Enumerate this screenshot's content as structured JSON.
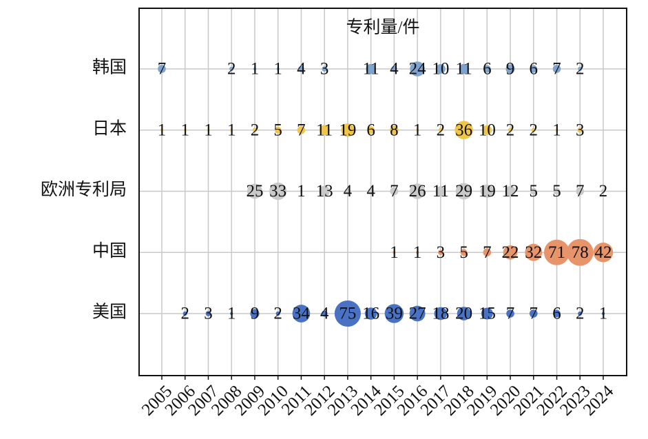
{
  "chart_data": {
    "type": "bubble",
    "title": "专利量/件",
    "categories": [
      "2005",
      "2006",
      "2007",
      "2008",
      "2009",
      "2010",
      "2011",
      "2012",
      "2013",
      "2014",
      "2015",
      "2016",
      "2017",
      "2018",
      "2019",
      "2020",
      "2021",
      "2022",
      "2023",
      "2024"
    ],
    "grid": true,
    "series": [
      {
        "name": "韩国",
        "color": "#7fa3cf",
        "values": [
          7,
          null,
          null,
          2,
          1,
          1,
          4,
          3,
          null,
          11,
          4,
          24,
          10,
          11,
          6,
          9,
          6,
          7,
          2,
          null
        ]
      },
      {
        "name": "日本",
        "color": "#efc64a",
        "values": [
          1,
          1,
          1,
          1,
          2,
          5,
          7,
          11,
          19,
          6,
          8,
          1,
          2,
          36,
          10,
          2,
          2,
          1,
          3,
          null
        ]
      },
      {
        "name": "欧洲专利局",
        "color": "#c9c9c9",
        "values": [
          null,
          null,
          null,
          null,
          25,
          33,
          1,
          13,
          4,
          4,
          7,
          26,
          11,
          29,
          19,
          12,
          5,
          5,
          7,
          2
        ]
      },
      {
        "name": "中国",
        "color": "#e8946a",
        "values": [
          null,
          null,
          null,
          null,
          null,
          null,
          null,
          null,
          null,
          null,
          1,
          1,
          3,
          5,
          7,
          22,
          32,
          71,
          78,
          42
        ]
      },
      {
        "name": "美国",
        "color": "#4a72c4",
        "values": [
          null,
          2,
          3,
          1,
          9,
          2,
          34,
          4,
          75,
          16,
          39,
          27,
          18,
          20,
          15,
          7,
          7,
          6,
          2,
          1
        ]
      }
    ]
  }
}
